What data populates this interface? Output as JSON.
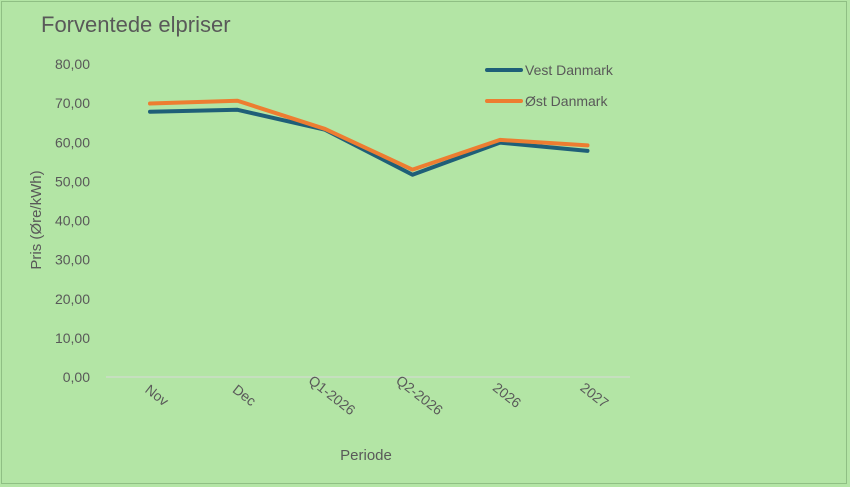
{
  "chart_data": {
    "type": "line",
    "title": "Forventede elpriser",
    "xlabel": "Periode",
    "ylabel": "Pris (Øre/kWh)",
    "categories": [
      "Nov",
      "Dec",
      "Q1-2026",
      "Q2-2026",
      "2026",
      "2027"
    ],
    "ylim": [
      0,
      80
    ],
    "yticks": [
      "0,00",
      "10,00",
      "20,00",
      "30,00",
      "40,00",
      "50,00",
      "60,00",
      "70,00",
      "80,00"
    ],
    "grid": false,
    "legend_position": "top-right",
    "series": [
      {
        "name": "Vest Danmark",
        "color": "#1f5f78",
        "values": [
          67.8,
          68.3,
          63.2,
          51.7,
          59.9,
          57.8
        ]
      },
      {
        "name": "Øst Danmark",
        "color": "#ed7d31",
        "values": [
          69.9,
          70.6,
          63.4,
          53.0,
          60.6,
          59.2
        ]
      }
    ]
  }
}
